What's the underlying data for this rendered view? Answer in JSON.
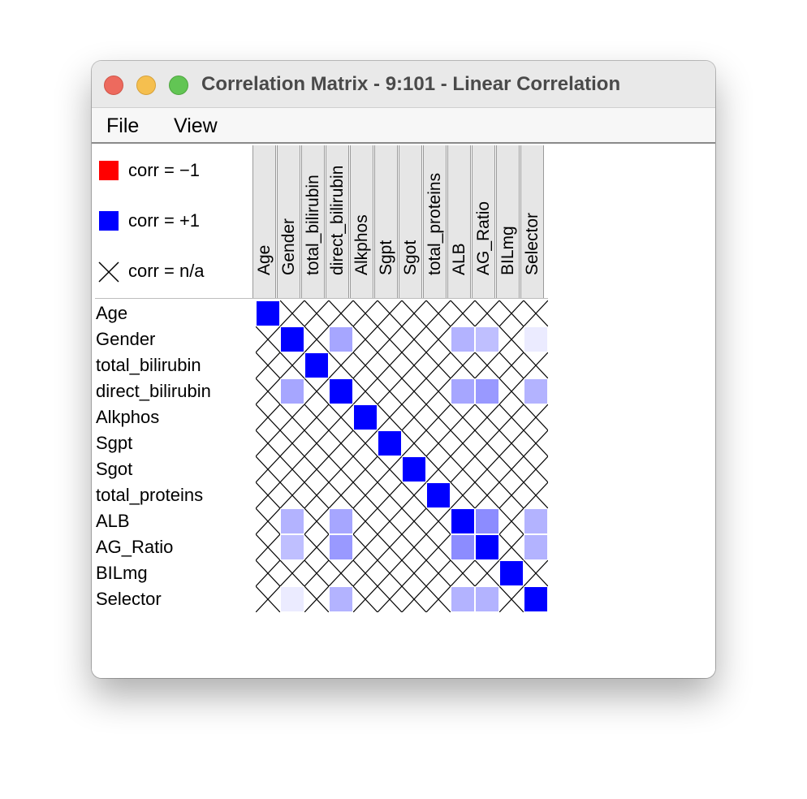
{
  "window": {
    "title": "Correlation Matrix - 9:101 - Linear Correlation"
  },
  "menu": {
    "items": [
      "File",
      "View"
    ]
  },
  "legend": {
    "neg": {
      "label": "corr = −1",
      "color": "#ff0000"
    },
    "pos": {
      "label": "corr = +1",
      "color": "#0000ff"
    },
    "na": {
      "label": "corr = n/a",
      "icon": "x-icon"
    }
  },
  "matrix": {
    "columns": [
      "Age",
      "Gender",
      "total_bilirubin",
      "direct_bilirubin",
      "Alkphos",
      "Sgpt",
      "Sgot",
      "total_proteins",
      "ALB",
      "AG_Ratio",
      "BILmg",
      "Selector"
    ],
    "rows": [
      "Age",
      "Gender",
      "total_bilirubin",
      "direct_bilirubin",
      "Alkphos",
      "Sgpt",
      "Sgot",
      "total_proteins",
      "ALB",
      "AG_Ratio",
      "BILmg",
      "Selector"
    ],
    "values": [
      [
        1,
        null,
        null,
        null,
        null,
        null,
        null,
        null,
        null,
        null,
        null,
        null
      ],
      [
        null,
        1,
        null,
        0.35,
        null,
        null,
        null,
        null,
        0.3,
        0.25,
        null,
        0.08
      ],
      [
        null,
        null,
        1,
        null,
        null,
        null,
        null,
        null,
        null,
        null,
        null,
        null
      ],
      [
        null,
        0.35,
        null,
        1,
        null,
        null,
        null,
        null,
        0.35,
        0.4,
        null,
        0.3
      ],
      [
        null,
        null,
        null,
        null,
        1,
        null,
        null,
        null,
        null,
        null,
        null,
        null
      ],
      [
        null,
        null,
        null,
        null,
        null,
        1,
        null,
        null,
        null,
        null,
        null,
        null
      ],
      [
        null,
        null,
        null,
        null,
        null,
        null,
        1,
        null,
        null,
        null,
        null,
        null
      ],
      [
        null,
        null,
        null,
        null,
        null,
        null,
        null,
        1,
        null,
        null,
        null,
        null
      ],
      [
        null,
        0.3,
        null,
        0.35,
        null,
        null,
        null,
        null,
        1,
        0.45,
        null,
        0.3
      ],
      [
        null,
        0.25,
        null,
        0.4,
        null,
        null,
        null,
        null,
        0.45,
        1,
        null,
        0.3
      ],
      [
        null,
        null,
        null,
        null,
        null,
        null,
        null,
        null,
        null,
        null,
        1,
        null
      ],
      [
        null,
        0.08,
        null,
        0.3,
        null,
        null,
        null,
        null,
        0.3,
        0.3,
        null,
        1
      ]
    ]
  }
}
